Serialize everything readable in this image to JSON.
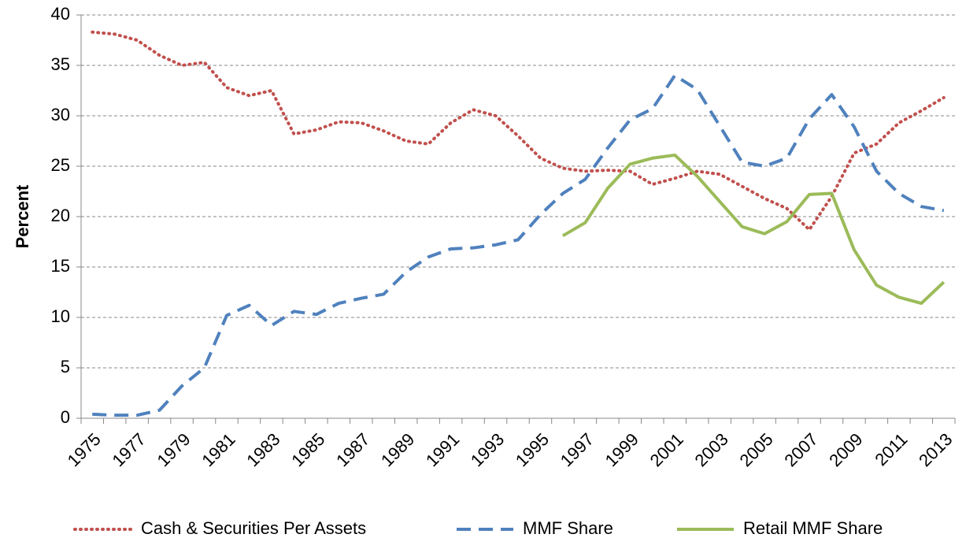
{
  "chart_data": {
    "type": "line",
    "y_label": "Percent",
    "categories": [
      "1975",
      null,
      "1977",
      null,
      "1979",
      null,
      "1981",
      null,
      "1983",
      null,
      "1985",
      null,
      "1987",
      null,
      "1989",
      null,
      "1991",
      null,
      "1993",
      null,
      "1995",
      null,
      "1997",
      null,
      "1999",
      null,
      "2001",
      null,
      "2003",
      null,
      "2005",
      null,
      "2007",
      null,
      "2009",
      null,
      "2011",
      null,
      "2013"
    ],
    "series": [
      {
        "name": "Cash & Securities Per Assets",
        "color": "#c0504d",
        "style": "dotted",
        "values": [
          38.3,
          38.1,
          37.5,
          36.0,
          35.0,
          35.3,
          32.8,
          32.0,
          32.5,
          28.2,
          28.6,
          29.4,
          29.3,
          28.5,
          27.5,
          27.2,
          29.3,
          30.6,
          30.0,
          28.0,
          25.8,
          24.8,
          24.5,
          24.6,
          24.5,
          23.2,
          23.8,
          24.5,
          24.2,
          23.0,
          21.8,
          20.8,
          18.7,
          22.0,
          26.3,
          27.2,
          29.3,
          30.5,
          31.8
        ]
      },
      {
        "name": "MMF Share",
        "color": "#4f81bd",
        "style": "dashed",
        "values": [
          0.4,
          0.3,
          0.3,
          0.8,
          3.2,
          5.0,
          10.2,
          11.2,
          9.2,
          10.6,
          10.3,
          11.4,
          11.9,
          12.3,
          14.5,
          16.0,
          16.8,
          16.9,
          17.2,
          17.7,
          20.2,
          22.3,
          23.7,
          26.8,
          29.6,
          30.7,
          34.0,
          32.6,
          29.0,
          25.4,
          25.0,
          25.8,
          29.7,
          32.1,
          28.9,
          24.5,
          22.3,
          21.0,
          20.6
        ]
      },
      {
        "name": "Retail MMF Share",
        "color": "#9bbb59",
        "style": "solid",
        "values": [
          null,
          null,
          null,
          null,
          null,
          null,
          null,
          null,
          null,
          null,
          null,
          null,
          null,
          null,
          null,
          null,
          null,
          null,
          null,
          null,
          null,
          18.1,
          19.4,
          22.8,
          25.2,
          25.8,
          26.1,
          24.0,
          21.5,
          19.0,
          18.3,
          19.5,
          22.2,
          22.3,
          16.7,
          13.2,
          12.0,
          11.4,
          13.5
        ]
      }
    ],
    "ylim": [
      0,
      40
    ],
    "yticks": [
      0,
      5,
      10,
      15,
      20,
      25,
      30,
      35,
      40
    ],
    "grid": true,
    "legend": "bottom"
  }
}
